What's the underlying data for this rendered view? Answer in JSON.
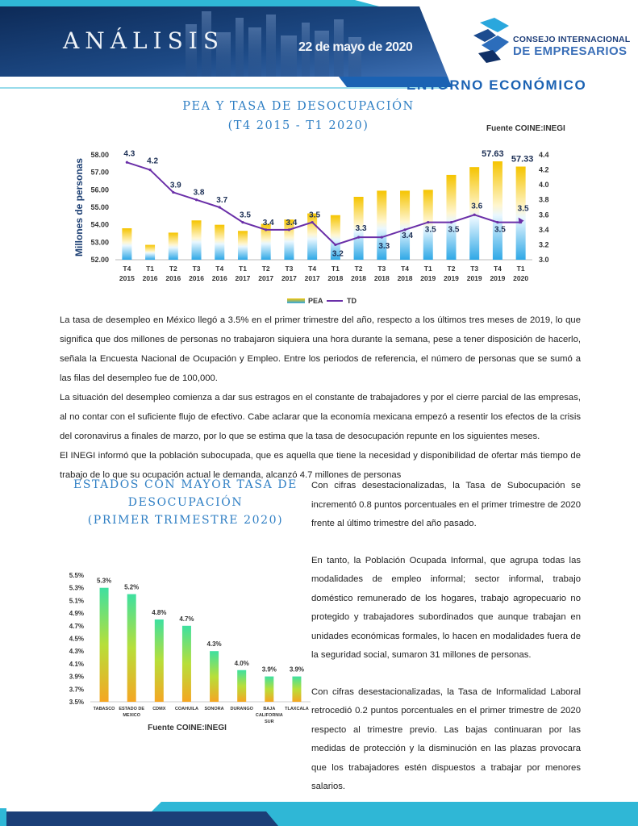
{
  "header": {
    "title": "ANÁLISIS",
    "date": "22 de mayo de 2020",
    "logo_line1": "CONSEJO INTERNACIONAL",
    "logo_line2": "DE EMPRESARIOS",
    "section": "ENTORNO ECONÓMICO"
  },
  "chart1": {
    "title_line1": "PEA  Y TASA DE DESOCUPACIÓN",
    "title_line2": "(T4 2015 - T1 2020)",
    "source": "Fuente COINE:INEGI"
  },
  "chart2": {
    "title_line1": "ESTADOS CON MAYOR TASA DE",
    "title_line2": "DESOCUPACIÓN",
    "title_line3": "(PRIMER TRIMESTRE 2020)",
    "source": "Fuente COINE:INEGI"
  },
  "paragraphs": [
    "La tasa de desempleo en México llegó a 3.5% en el primer trimestre del año, respecto a los últimos tres meses de 2019, lo que significa que dos millones de personas no trabajaron siquiera una hora durante la semana, pese a tener disposición de hacerlo, señala la Encuesta Nacional de Ocupación y Empleo. Entre los periodos de referencia, el número de personas que se sumó a las filas del desempleo fue de 100,000.",
    "La situación del desempleo comienza a dar sus estragos en el constante de trabajadores y por el cierre parcial de las empresas, al no contar con el suficiente flujo de efectivo. Cabe aclarar que la economía mexicana empezó a resentir los efectos de la crisis del coronavirus a finales de marzo, por lo que se estima que la tasa de desocupación repunte en los siguientes meses.",
    "El INEGI informó que la población subocupada, que es aquella que tiene la necesidad y disponibilidad de ofertar más tiempo de trabajo de lo que su ocupación actual le demanda, alcanzó 4.7 millones de personas"
  ],
  "right_column": [
    "Con cifras desestacionalizadas, la Tasa de Subocupación se incrementó 0.8 puntos porcentuales en el primer trimestre de 2020 frente al último trimestre del año pasado.",
    "En tanto, la Población Ocupada Informal, que agrupa todas las modalidades de empleo informal; sector informal, trabajo doméstico remunerado de los hogares, trabajo agropecuario no protegido y trabajadores subordinados que aunque trabajan en unidades económicas formales, lo hacen en modalidades fuera de la seguridad social, sumaron 31 millones de personas.",
    "Con cifras desestacionalizadas, la Tasa de Informalidad Laboral retrocedió 0.2 puntos porcentuales en el primer trimestre de 2020 respecto al trimestre previo. Las bajas continuaran por las medidas de protección y la disminución en las plazas provocara que los trabajadores estén dispuestos a trabajar por menores salarios."
  ],
  "colors": {
    "title_blue": "#2f7fc4",
    "section_blue": "#1b62b3",
    "line_purple": "#6a2fa8",
    "bar_yellow": "#f5c400",
    "bar_blue": "#2fa8e6",
    "bar_green": "#3ee0a0",
    "bar_orange": "#f5a623"
  },
  "chart_data": [
    {
      "type": "bar",
      "categories": [
        [
          "T4",
          "2015"
        ],
        [
          "T1",
          "2016"
        ],
        [
          "T2",
          "2016"
        ],
        [
          "T3",
          "2016"
        ],
        [
          "T4",
          "2016"
        ],
        [
          "T1",
          "2017"
        ],
        [
          "T2",
          "2017"
        ],
        [
          "T3",
          "2017"
        ],
        [
          "T4",
          "2017"
        ],
        [
          "T1",
          "2018"
        ],
        [
          "T2",
          "2018"
        ],
        [
          "T3",
          "2018"
        ],
        [
          "T4",
          "2018"
        ],
        [
          "T1",
          "2019"
        ],
        [
          "T2",
          "2019"
        ],
        [
          "T3",
          "2019"
        ],
        [
          "T4",
          "2019"
        ],
        [
          "T1",
          "2020"
        ]
      ],
      "series": [
        {
          "name": "PEA",
          "type": "bar",
          "axis": "left",
          "values": [
            53.8,
            52.85,
            53.55,
            54.25,
            54.0,
            53.65,
            54.05,
            54.3,
            54.65,
            54.55,
            55.6,
            55.95,
            55.95,
            56.0,
            56.85,
            57.3,
            57.63,
            57.33
          ]
        },
        {
          "name": "TD",
          "type": "line",
          "axis": "right",
          "values": [
            4.3,
            4.2,
            3.9,
            3.8,
            3.7,
            3.5,
            3.4,
            3.4,
            3.5,
            3.2,
            3.3,
            3.3,
            3.4,
            3.5,
            3.5,
            3.6,
            3.5,
            3.5
          ]
        }
      ],
      "bar_labels": [
        {
          "index": 16,
          "text": "57.63"
        },
        {
          "index": 17,
          "text": "57.33"
        }
      ],
      "line_labels": [
        "4.3",
        "4.2",
        "3.9",
        "3.8",
        "3.7",
        "3.5",
        "3.4",
        "3.4",
        "3.5",
        "3.2",
        "3.3",
        "3.3",
        "3.4",
        "3.5",
        "3.5",
        "3.6",
        "3.5",
        "3.5"
      ],
      "ylabel": "Millones de personas",
      "ylim": [
        52.0,
        58.0
      ],
      "yticks": [
        "52.00",
        "53.00",
        "54.00",
        "55.00",
        "56.00",
        "57.00",
        "58.00"
      ],
      "y2lim": [
        3.0,
        4.4
      ],
      "y2ticks": [
        "3.0",
        "3.2",
        "3.4",
        "3.6",
        "3.8",
        "4.0",
        "4.2",
        "4.4"
      ],
      "legend": [
        "PEA",
        "TD"
      ],
      "legend_position": "bottom",
      "grid": false
    },
    {
      "type": "bar",
      "categories": [
        [
          "TABASCO"
        ],
        [
          "ESTADO DE",
          "MEXICO"
        ],
        [
          "CDMX"
        ],
        [
          "COAHUILA"
        ],
        [
          "SONORA"
        ],
        [
          "DURANGO"
        ],
        [
          "BAJA",
          "CALIFORNIA",
          "SUR"
        ],
        [
          "TLAXCALA"
        ]
      ],
      "values": [
        5.3,
        5.2,
        4.8,
        4.7,
        4.3,
        4.0,
        3.9,
        3.9
      ],
      "data_labels": [
        "5.3%",
        "5.2%",
        "4.8%",
        "4.7%",
        "4.3%",
        "4.0%",
        "3.9%",
        "3.9%"
      ],
      "ylim": [
        3.5,
        5.5
      ],
      "yticks": [
        "3.5%",
        "3.7%",
        "3.9%",
        "4.1%",
        "4.3%",
        "4.5%",
        "4.7%",
        "4.9%",
        "5.1%",
        "5.3%",
        "5.5%"
      ],
      "grid": false
    }
  ]
}
